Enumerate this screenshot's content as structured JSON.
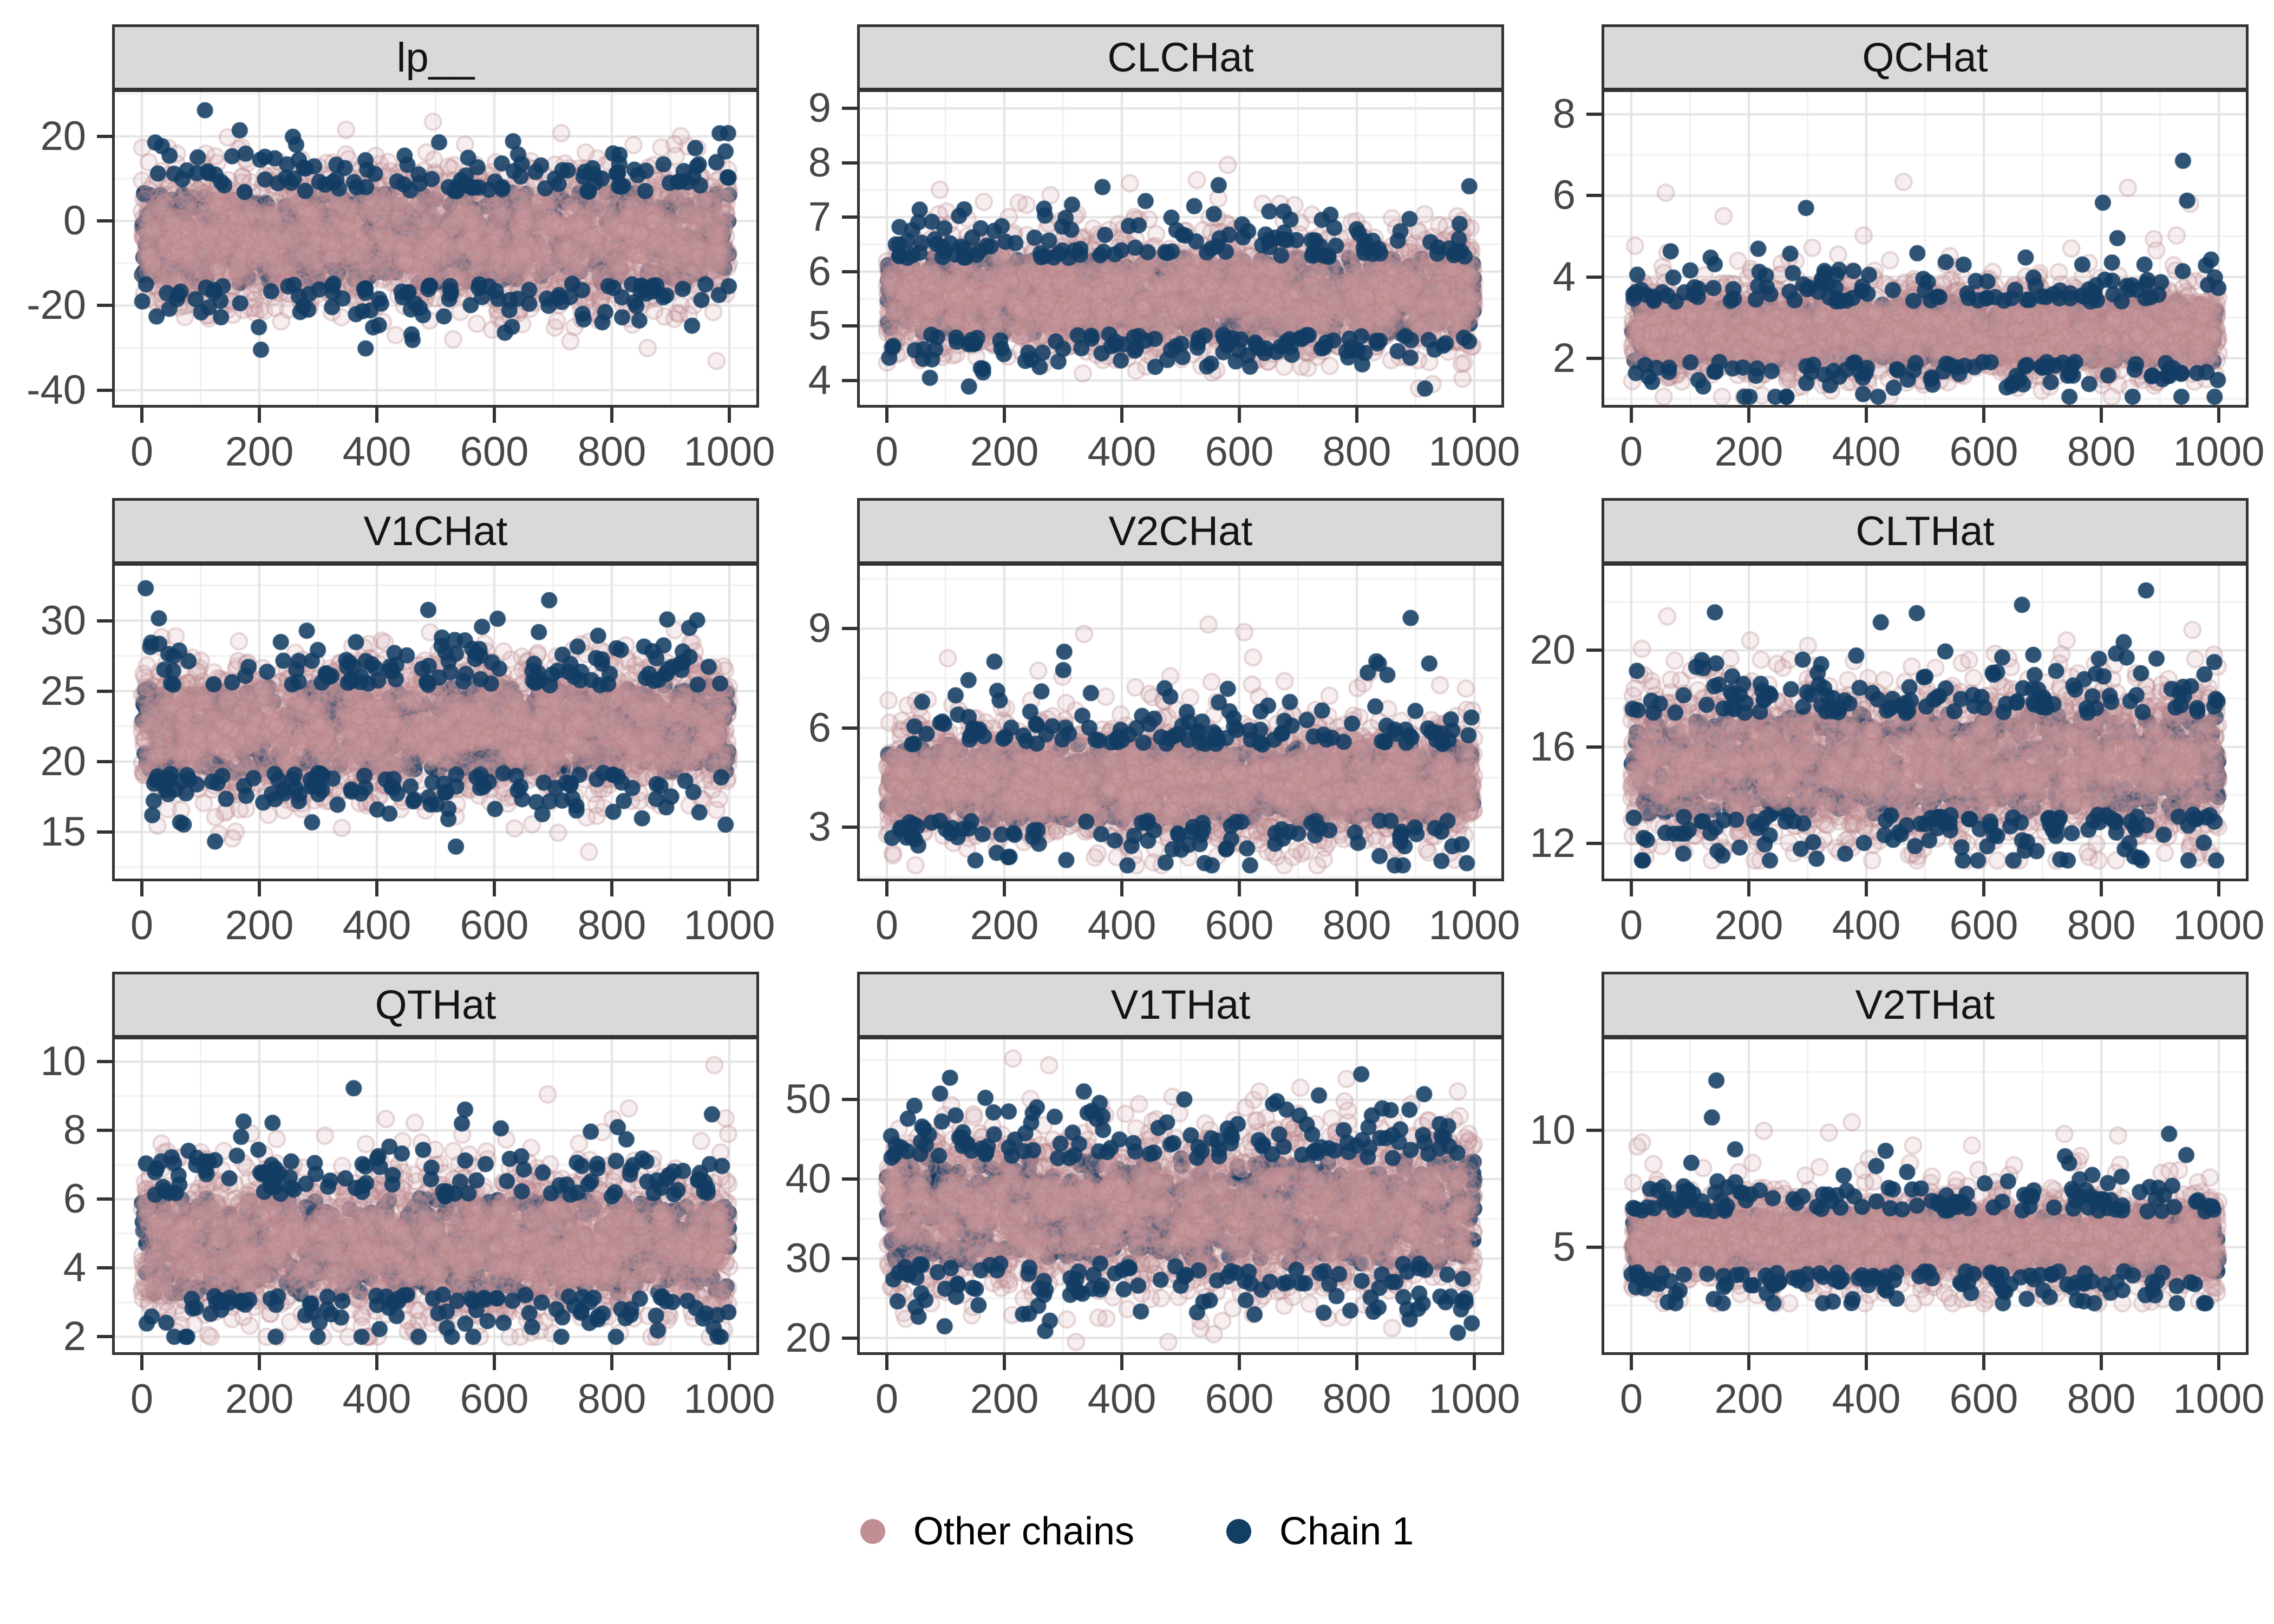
{
  "chart_data": {
    "type": "scatter",
    "description": "3x3 faceted MCMC draw scatter (trace) plots, one facet per parameter, points per iteration colored by chain group",
    "iterations": 1000,
    "x_ticks": [
      0,
      200,
      400,
      600,
      800,
      1000
    ],
    "x_minor_step": 100,
    "xlim": [
      -50,
      1050
    ],
    "panels": [
      {
        "title": "lp__",
        "ylim": [
          -43.5,
          30.5
        ],
        "yticks": [
          20,
          0,
          -20,
          -40
        ],
        "ytick_step": 20,
        "band": {
          "center": -4.0,
          "sd": 8.0,
          "min": -36.0,
          "max": 28.0,
          "tail_prob": 0.012,
          "tail_scale": 6.0,
          "low_tail_prob": 0.012
        }
      },
      {
        "title": "CLCHat",
        "ylim": [
          3.55,
          9.3
        ],
        "yticks": [
          9,
          8,
          7,
          6,
          5,
          4
        ],
        "ytick_step": 1,
        "band": {
          "center": 5.55,
          "sd": 0.52,
          "min": 3.85,
          "max": 8.75,
          "tail_prob": 0.02,
          "tail_scale": 0.75,
          "low_tail_prob": 0
        }
      },
      {
        "title": "QCHat",
        "ylim": [
          0.85,
          8.55
        ],
        "yticks": [
          8,
          6,
          4,
          2
        ],
        "ytick_step": 2,
        "band": {
          "center": 2.65,
          "sd": 0.55,
          "min": 1.05,
          "max": 7.6,
          "tail_prob": 0.018,
          "tail_scale": 1.1,
          "low_tail_prob": 0
        }
      },
      {
        "title": "V1CHat",
        "ylim": [
          11.7,
          33.9
        ],
        "yticks": [
          30,
          25,
          20,
          15
        ],
        "ytick_step": 5,
        "band": {
          "center": 22.3,
          "sd": 2.3,
          "min": 12.8,
          "max": 32.3,
          "tail_prob": 0.012,
          "tail_scale": 2.2,
          "low_tail_prob": 0.006
        }
      },
      {
        "title": "V2CHat",
        "ylim": [
          1.45,
          10.9
        ],
        "yticks": [
          9,
          6,
          3
        ],
        "ytick_step": 3,
        "band": {
          "center": 4.35,
          "sd": 0.85,
          "min": 1.85,
          "max": 10.4,
          "tail_prob": 0.02,
          "tail_scale": 1.6,
          "low_tail_prob": 0
        }
      },
      {
        "title": "CLTHat",
        "ylim": [
          10.55,
          23.5
        ],
        "yticks": [
          20,
          16,
          12
        ],
        "ytick_step": 4,
        "band": {
          "center": 15.3,
          "sd": 1.55,
          "min": 11.3,
          "max": 23.0,
          "tail_prob": 0.02,
          "tail_scale": 2.0,
          "low_tail_prob": 0
        }
      },
      {
        "title": "QTHat",
        "ylim": [
          1.55,
          10.65
        ],
        "yticks": [
          10,
          8,
          6,
          4,
          2
        ],
        "ytick_step": 2,
        "band": {
          "center": 4.65,
          "sd": 1.05,
          "min": 2.0,
          "max": 9.9,
          "tail_prob": 0.02,
          "tail_scale": 1.4,
          "low_tail_prob": 0
        }
      },
      {
        "title": "V1THat",
        "ylim": [
          18.2,
          57.6
        ],
        "yticks": [
          50,
          40,
          30,
          20
        ],
        "ytick_step": 10,
        "band": {
          "center": 36.0,
          "sd": 4.9,
          "min": 19.5,
          "max": 56.0,
          "tail_prob": 0.015,
          "tail_scale": 4.5,
          "low_tail_prob": 0.006
        }
      },
      {
        "title": "V2THat",
        "ylim": [
          0.5,
          13.9
        ],
        "yticks": [
          10,
          5
        ],
        "ytick_step": 5,
        "band": {
          "center": 5.25,
          "sd": 0.95,
          "min": 2.6,
          "max": 12.9,
          "tail_prob": 0.02,
          "tail_scale": 2.0,
          "low_tail_prob": 0
        }
      }
    ],
    "legend": {
      "position": "bottom-center",
      "items": [
        {
          "label": "Other chains",
          "color": "#C08F94"
        },
        {
          "label": "Chain 1",
          "color": "#123E63"
        }
      ]
    },
    "colors": {
      "chain1_point": "#123C63",
      "other_point_fill": "#CEA2A4",
      "other_point_edge": "#BB8589",
      "strip_background": "#D9D9D9",
      "panel_border": "#333333",
      "axis_text": "#474747",
      "grid_major": "#E4E4E4",
      "grid_minor": "#F1F1F1"
    },
    "grid": true,
    "legend_labels": [
      "Other chains",
      "Chain 1"
    ]
  }
}
